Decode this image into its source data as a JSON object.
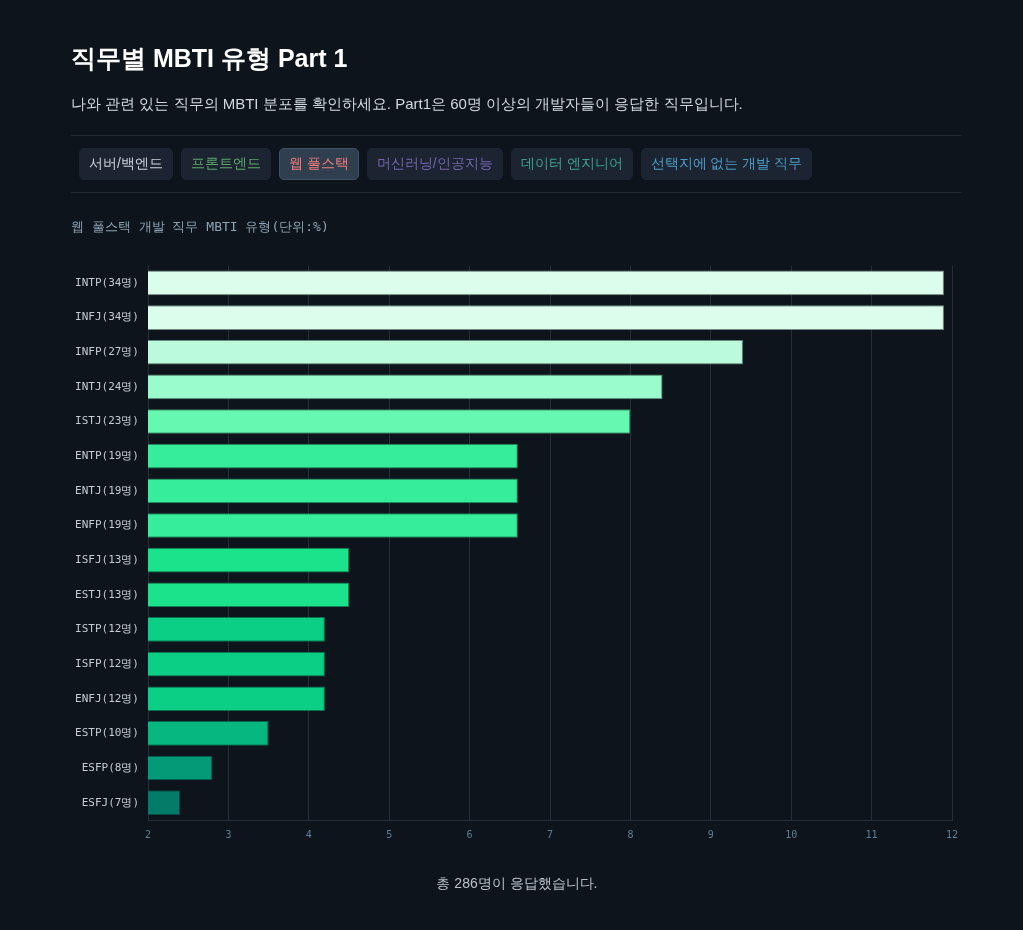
{
  "chart_data": {
    "type": "bar",
    "orientation": "horizontal",
    "title": "직무별 MBTI 유형 Part 1",
    "subtitle": "나와 관련 있는 직무의 MBTI 분포를 확인하세요. Part1은 60명 이상의 개발자들이 응답한 직무입니다.",
    "annotations": [
      "서버/백엔드",
      "프론트엔드",
      "웹 풀스택",
      "머신러닝/인공지능",
      "데이터 엔지니어",
      "선택지에 없는 개발 직무",
      "웹 풀스택 개발 직무 MBTI 유형(단위:%)",
      "총 286명이 응답했습니다."
    ],
    "categories": [
      "INTP(34명)",
      "INFJ(34명)",
      "INFP(27명)",
      "INTJ(24명)",
      "ISTJ(23명)",
      "ENTP(19명)",
      "ENTJ(19명)",
      "ENFP(19명)",
      "ISFJ(13명)",
      "ESTJ(13명)",
      "ISTP(12명)",
      "ISFP(12명)",
      "ENFJ(12명)",
      "ESTP(10명)",
      "ESFP(8명)",
      "ESFJ(7명)"
    ],
    "values": [
      11.9,
      11.9,
      9.4,
      8.4,
      8.0,
      6.6,
      6.6,
      6.6,
      4.5,
      4.5,
      4.2,
      4.2,
      4.2,
      3.5,
      2.8,
      2.4
    ],
    "colors": [
      "#dcfdec",
      "#dcfdec",
      "#bbfbdc",
      "#9afbcc",
      "#66f7b0",
      "#36ed9b",
      "#36ed9b",
      "#36ed9b",
      "#1ae38c",
      "#1ae38c",
      "#0acf84",
      "#0acf84",
      "#0acf84",
      "#06b880",
      "#049a78",
      "#027c68"
    ],
    "xlim": [
      2,
      12
    ],
    "xticks": [
      2,
      3,
      4,
      5,
      6,
      7,
      8,
      9,
      10,
      11,
      12
    ],
    "grid": "x"
  }
}
